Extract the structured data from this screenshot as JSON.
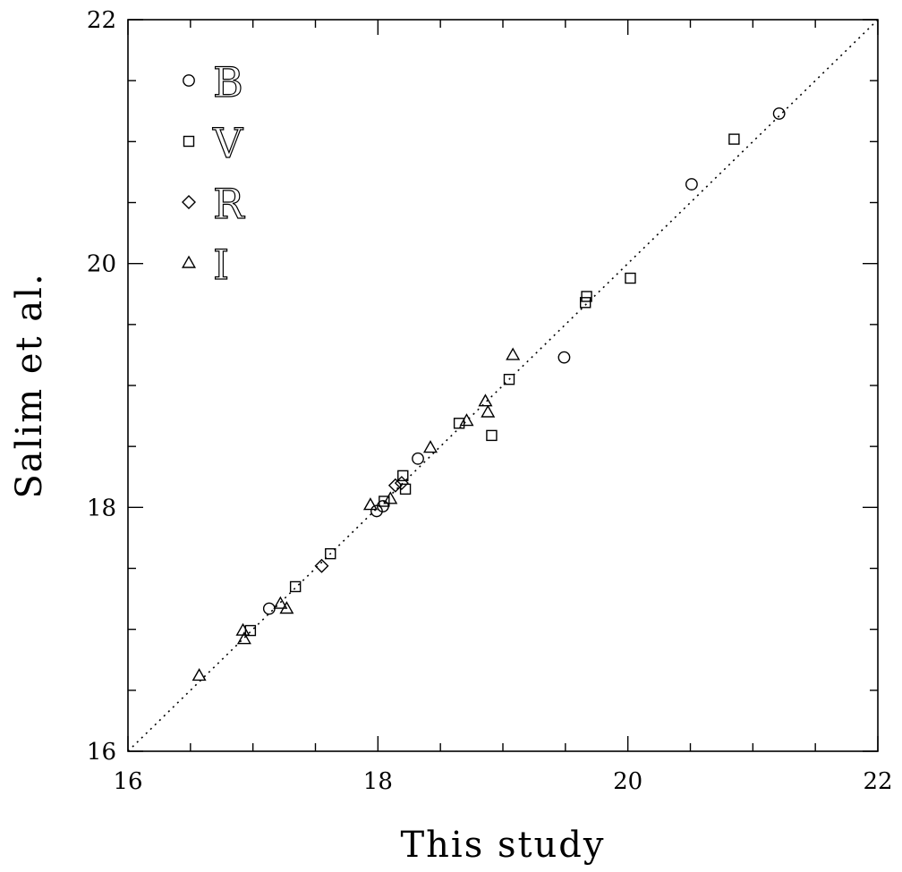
{
  "chart_data": {
    "type": "scatter",
    "xlabel": "This study",
    "ylabel": "Salim et al.",
    "xlim": [
      16,
      22
    ],
    "ylim": [
      16,
      22
    ],
    "x_ticks": [
      16,
      18,
      20,
      22
    ],
    "y_ticks": [
      16,
      18,
      20,
      22
    ],
    "x_tick_labels": [
      "16",
      "18",
      "20",
      "22"
    ],
    "y_tick_labels": [
      "16",
      "18",
      "20",
      "22"
    ],
    "minor_tick_step": 0.5,
    "grid": false,
    "reference_line": {
      "style": "dotted",
      "from": [
        16,
        16
      ],
      "to": [
        22,
        22
      ]
    },
    "legend": {
      "placement": "top-left",
      "entries": [
        {
          "label": "B",
          "marker": "circle"
        },
        {
          "label": "V",
          "marker": "square"
        },
        {
          "label": "R",
          "marker": "diamond"
        },
        {
          "label": "I",
          "marker": "triangle"
        }
      ]
    },
    "series": [
      {
        "name": "B",
        "marker": "circle",
        "points": [
          [
            17.13,
            17.17
          ],
          [
            17.99,
            17.97
          ],
          [
            18.04,
            18.01
          ],
          [
            18.32,
            18.4
          ],
          [
            19.49,
            19.23
          ],
          [
            20.51,
            20.65
          ],
          [
            21.21,
            21.23
          ]
        ]
      },
      {
        "name": "V",
        "marker": "square",
        "points": [
          [
            16.98,
            16.99
          ],
          [
            17.34,
            17.35
          ],
          [
            17.62,
            17.62
          ],
          [
            18.05,
            18.05
          ],
          [
            18.2,
            18.26
          ],
          [
            18.22,
            18.15
          ],
          [
            18.65,
            18.69
          ],
          [
            18.91,
            18.59
          ],
          [
            19.05,
            19.05
          ],
          [
            19.66,
            19.68
          ],
          [
            19.67,
            19.73
          ],
          [
            20.02,
            19.88
          ],
          [
            20.85,
            21.02
          ]
        ]
      },
      {
        "name": "R",
        "marker": "diamond",
        "points": [
          [
            17.55,
            17.52
          ],
          [
            18.14,
            18.18
          ],
          [
            18.19,
            18.2
          ]
        ]
      },
      {
        "name": "I",
        "marker": "triangle",
        "points": [
          [
            16.57,
            16.62
          ],
          [
            16.92,
            16.99
          ],
          [
            16.93,
            16.92
          ],
          [
            17.22,
            17.21
          ],
          [
            17.27,
            17.17
          ],
          [
            17.94,
            18.02
          ],
          [
            18.1,
            18.07
          ],
          [
            18.42,
            18.49
          ],
          [
            18.71,
            18.71
          ],
          [
            18.86,
            18.87
          ],
          [
            18.88,
            18.78
          ],
          [
            19.08,
            19.25
          ]
        ]
      }
    ]
  }
}
